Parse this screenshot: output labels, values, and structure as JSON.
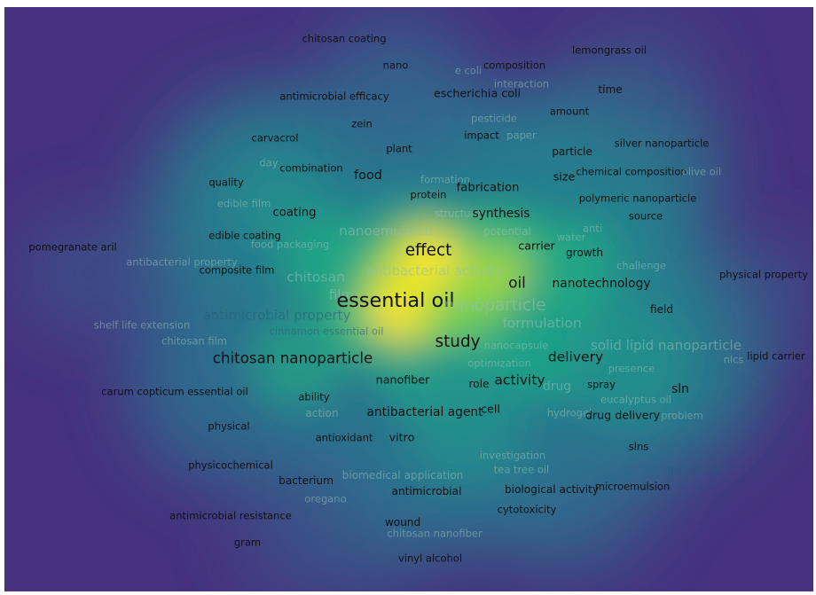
{
  "chart_data": {
    "type": "heatmap",
    "title": "",
    "colors": {
      "background": "#46327e",
      "low": "#3b528b",
      "mid": "#21918c",
      "high": "#5ec962",
      "peak": "#fde725"
    },
    "terms": [
      {
        "label": "chitosan coating",
        "weight": 1,
        "style": "dark"
      },
      {
        "label": "nano",
        "weight": 1,
        "style": "dark"
      },
      {
        "label": "e coli",
        "weight": 1,
        "style": "faded"
      },
      {
        "label": "composition",
        "weight": 1,
        "style": "dark"
      },
      {
        "label": "lemongrass oil",
        "weight": 1,
        "style": "dark"
      },
      {
        "label": "interaction",
        "weight": 1,
        "style": "faded"
      },
      {
        "label": "antimicrobial efficacy",
        "weight": 1,
        "style": "dark"
      },
      {
        "label": "escherichia coli",
        "weight": 1.1,
        "style": "dark"
      },
      {
        "label": "time",
        "weight": 1.05,
        "style": "dark"
      },
      {
        "label": "amount",
        "weight": 1,
        "style": "dark"
      },
      {
        "label": "pesticide",
        "weight": 1,
        "style": "faded"
      },
      {
        "label": "zein",
        "weight": 1,
        "style": "dark"
      },
      {
        "label": "impact",
        "weight": 1,
        "style": "dark"
      },
      {
        "label": "paper",
        "weight": 1,
        "style": "faded"
      },
      {
        "label": "carvacrol",
        "weight": 1,
        "style": "dark"
      },
      {
        "label": "plant",
        "weight": 1,
        "style": "dark"
      },
      {
        "label": "silver nanoparticle",
        "weight": 1,
        "style": "dark"
      },
      {
        "label": "particle",
        "weight": 1.05,
        "style": "dark"
      },
      {
        "label": "day",
        "weight": 1,
        "style": "faded"
      },
      {
        "label": "combination",
        "weight": 1,
        "style": "dark"
      },
      {
        "label": "food",
        "weight": 1.25,
        "style": "dark"
      },
      {
        "label": "size",
        "weight": 1.1,
        "style": "dark"
      },
      {
        "label": "chemical composition",
        "weight": 1,
        "style": "dark"
      },
      {
        "label": "olive oil",
        "weight": 1,
        "style": "faded"
      },
      {
        "label": "quality",
        "weight": 1,
        "style": "dark"
      },
      {
        "label": "formation",
        "weight": 1,
        "style": "faded"
      },
      {
        "label": "fabrication",
        "weight": 1.15,
        "style": "dark"
      },
      {
        "label": "protein",
        "weight": 1,
        "style": "dark"
      },
      {
        "label": "polymeric nanoparticle",
        "weight": 1,
        "style": "dark"
      },
      {
        "label": "edible film",
        "weight": 1,
        "style": "faded"
      },
      {
        "label": "coating",
        "weight": 1.15,
        "style": "dark"
      },
      {
        "label": "structure",
        "weight": 1,
        "style": "faded"
      },
      {
        "label": "synthesis",
        "weight": 1.2,
        "style": "dark"
      },
      {
        "label": "source",
        "weight": 1,
        "style": "dark"
      },
      {
        "label": "anti",
        "weight": 1,
        "style": "faded"
      },
      {
        "label": "edible coating",
        "weight": 1,
        "style": "dark"
      },
      {
        "label": "nanoemulsion",
        "weight": 1.3,
        "style": "faded"
      },
      {
        "label": "potential",
        "weight": 1.05,
        "style": "faded"
      },
      {
        "label": "water",
        "weight": 1,
        "style": "faded"
      },
      {
        "label": "pomegranate aril",
        "weight": 1,
        "style": "dark"
      },
      {
        "label": "food packaging",
        "weight": 1,
        "style": "faded"
      },
      {
        "label": "effect",
        "weight": 1.6,
        "style": "dark"
      },
      {
        "label": "carrier",
        "weight": 1.1,
        "style": "dark"
      },
      {
        "label": "growth",
        "weight": 1.05,
        "style": "dark"
      },
      {
        "label": "antibacterial property",
        "weight": 1,
        "style": "faded"
      },
      {
        "label": "challenge",
        "weight": 1,
        "style": "faded"
      },
      {
        "label": "composite film",
        "weight": 1,
        "style": "dark"
      },
      {
        "label": "chitosan",
        "weight": 1.35,
        "style": "faded"
      },
      {
        "label": "antibacterial activity",
        "weight": 1.3,
        "style": "faded"
      },
      {
        "label": "physical property",
        "weight": 1,
        "style": "dark"
      },
      {
        "label": "oil",
        "weight": 1.45,
        "style": "dark"
      },
      {
        "label": "nanotechnology",
        "weight": 1.2,
        "style": "dark"
      },
      {
        "label": "film",
        "weight": 1.3,
        "style": "faded"
      },
      {
        "label": "essential oil",
        "weight": 1.95,
        "style": "dark"
      },
      {
        "label": "nanoparticle",
        "weight": 1.6,
        "style": "faded"
      },
      {
        "label": "field",
        "weight": 1.05,
        "style": "dark"
      },
      {
        "label": "antimicrobial property",
        "weight": 1.3,
        "style": "faded-dark"
      },
      {
        "label": "formulation",
        "weight": 1.35,
        "style": "faded"
      },
      {
        "label": "shelf life extension",
        "weight": 1,
        "style": "faded"
      },
      {
        "label": "cinnamon essential oil",
        "weight": 1,
        "style": "faded-dark"
      },
      {
        "label": "chitosan film",
        "weight": 1,
        "style": "faded"
      },
      {
        "label": "study",
        "weight": 1.6,
        "style": "dark"
      },
      {
        "label": "nanocapsule",
        "weight": 1,
        "style": "faded"
      },
      {
        "label": "solid lipid nanoparticle",
        "weight": 1.3,
        "style": "faded"
      },
      {
        "label": "chitosan nanoparticle",
        "weight": 1.45,
        "style": "dark"
      },
      {
        "label": "delivery",
        "weight": 1.35,
        "style": "dark"
      },
      {
        "label": "nlcs",
        "weight": 1,
        "style": "faded"
      },
      {
        "label": "lipid carrier",
        "weight": 1,
        "style": "dark"
      },
      {
        "label": "optimization",
        "weight": 1,
        "style": "faded"
      },
      {
        "label": "presence",
        "weight": 1,
        "style": "faded"
      },
      {
        "label": "nanofiber",
        "weight": 1.1,
        "style": "dark"
      },
      {
        "label": "role",
        "weight": 1.05,
        "style": "dark"
      },
      {
        "label": "activity",
        "weight": 1.35,
        "style": "dark"
      },
      {
        "label": "drug",
        "weight": 1.2,
        "style": "faded"
      },
      {
        "label": "spray",
        "weight": 1,
        "style": "dark"
      },
      {
        "label": "carum copticum essential oil",
        "weight": 1,
        "style": "dark"
      },
      {
        "label": "ability",
        "weight": 1,
        "style": "dark"
      },
      {
        "label": "sln",
        "weight": 1.2,
        "style": "dark"
      },
      {
        "label": "eucalyptus oil",
        "weight": 1,
        "style": "faded"
      },
      {
        "label": "action",
        "weight": 1.05,
        "style": "faded"
      },
      {
        "label": "antibacterial agent",
        "weight": 1.2,
        "style": "dark"
      },
      {
        "label": "cell",
        "weight": 1.1,
        "style": "dark"
      },
      {
        "label": "hydrogel",
        "weight": 1,
        "style": "faded"
      },
      {
        "label": "drug delivery",
        "weight": 1.1,
        "style": "dark"
      },
      {
        "label": "problem",
        "weight": 1,
        "style": "faded"
      },
      {
        "label": "physical",
        "weight": 1,
        "style": "dark"
      },
      {
        "label": "antioxidant",
        "weight": 1,
        "style": "dark"
      },
      {
        "label": "vitro",
        "weight": 1.1,
        "style": "dark"
      },
      {
        "label": "slns",
        "weight": 1,
        "style": "dark"
      },
      {
        "label": "investigation",
        "weight": 1,
        "style": "faded"
      },
      {
        "label": "physicochemical",
        "weight": 1,
        "style": "dark"
      },
      {
        "label": "tea tree oil",
        "weight": 1,
        "style": "faded"
      },
      {
        "label": "drug release",
        "weight": 1,
        "style": "faded-dark"
      },
      {
        "label": "biomedical application",
        "weight": 1.05,
        "style": "faded"
      },
      {
        "label": "bacterium",
        "weight": 1.05,
        "style": "dark"
      },
      {
        "label": "microemulsion",
        "weight": 1,
        "style": "dark"
      },
      {
        "label": "antimicrobial",
        "weight": 1.05,
        "style": "dark"
      },
      {
        "label": "biological activity",
        "weight": 1.05,
        "style": "dark"
      },
      {
        "label": "oregano",
        "weight": 1,
        "style": "faded"
      },
      {
        "label": "cytotoxicity",
        "weight": 1,
        "style": "dark"
      },
      {
        "label": "antimicrobial resistance",
        "weight": 1,
        "style": "dark"
      },
      {
        "label": "wound",
        "weight": 1.05,
        "style": "dark"
      },
      {
        "label": "chitosan nanofiber",
        "weight": 1,
        "style": "faded"
      },
      {
        "label": "gram",
        "weight": 1,
        "style": "dark"
      },
      {
        "label": "vinyl alcohol",
        "weight": 1,
        "style": "dark"
      }
    ]
  }
}
